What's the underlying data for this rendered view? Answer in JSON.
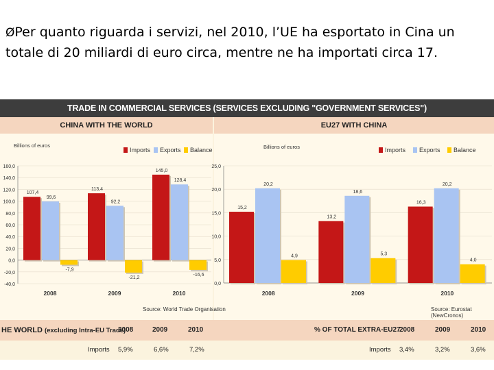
{
  "caption": {
    "bullet": "Ø",
    "text": "Per quanto riguarda i servizi, nel 2010, l’UE ha esportato in Cina un totale di 20 miliardi di euro circa, mentre ne ha importati circa 17."
  },
  "figure": {
    "title": "TRADE IN COMMERCIAL SERVICES (SERVICES EXCLUDING \"GOVERNMENT SERVICES\")",
    "left_heading": "CHINA WITH THE WORLD",
    "right_heading": "EU27 WITH CHINA",
    "left_source": "Source: World Trade Organisation",
    "right_source": "Source: Eurostat (NewCronos)"
  },
  "colors": {
    "imports": "#c41717",
    "exports": "#a9c4f2",
    "balance": "#ffcc00"
  },
  "chart_data": [
    {
      "type": "bar",
      "title": "CHINA WITH THE WORLD",
      "ylabel": "Billions of euros",
      "categories": [
        "2008",
        "2009",
        "2010"
      ],
      "series": [
        {
          "name": "Imports",
          "values": [
            107.4,
            113.4,
            145.0
          ],
          "labels": [
            "107,4",
            "113,4",
            "145,0"
          ]
        },
        {
          "name": "Exports",
          "values": [
            99.6,
            92.2,
            128.4
          ],
          "labels": [
            "99,6",
            "92,2",
            "128,4"
          ]
        },
        {
          "name": "Balance",
          "values": [
            -7.9,
            -21.2,
            -16.6
          ],
          "labels": [
            "-7,9",
            "-21,2",
            "-16,6"
          ]
        }
      ],
      "ylim": [
        -40,
        160
      ],
      "yticks": [
        "160,0",
        "140,0",
        "120,0",
        "100,0",
        "80,0",
        "60,0",
        "40,0",
        "20,0",
        "0,0",
        "-20,0",
        "-40,0"
      ],
      "ytick_values": [
        160,
        140,
        120,
        100,
        80,
        60,
        40,
        20,
        0,
        -20,
        -40
      ],
      "legend": "top"
    },
    {
      "type": "bar",
      "title": "EU27 WITH CHINA",
      "ylabel": "Billions of euros",
      "categories": [
        "2008",
        "2009",
        "2010"
      ],
      "series": [
        {
          "name": "Imports",
          "values": [
            15.2,
            13.2,
            16.3
          ],
          "labels": [
            "15,2",
            "13,2",
            "16,3"
          ]
        },
        {
          "name": "Exports",
          "values": [
            20.2,
            18.6,
            20.2
          ],
          "labels": [
            "20,2",
            "18,6",
            "20,2"
          ]
        },
        {
          "name": "Balance",
          "values": [
            4.9,
            5.3,
            4.0
          ],
          "labels": [
            "4,9",
            "5,3",
            "4,0"
          ]
        }
      ],
      "ylim": [
        0,
        25
      ],
      "yticks": [
        "25,0",
        "20,0",
        "15,0",
        "10,0",
        "5,0",
        "0,0"
      ],
      "ytick_values": [
        25,
        20,
        15,
        10,
        5,
        0
      ],
      "legend": "top"
    }
  ],
  "bottom_table": {
    "left_title": "HE WORLD",
    "left_sub": "(excluding Intra-EU Trade)",
    "left_years": [
      "2008",
      "2009",
      "2010"
    ],
    "left_row_label": "Imports",
    "left_values": [
      "5,9%",
      "6,6%",
      "7,2%"
    ],
    "right_title": "% OF TOTAL EXTRA-EU27",
    "right_years": [
      "2008",
      "2009",
      "2010"
    ],
    "right_row_label": "Imports",
    "right_values": [
      "3,4%",
      "3,2%",
      "3,6%"
    ]
  }
}
